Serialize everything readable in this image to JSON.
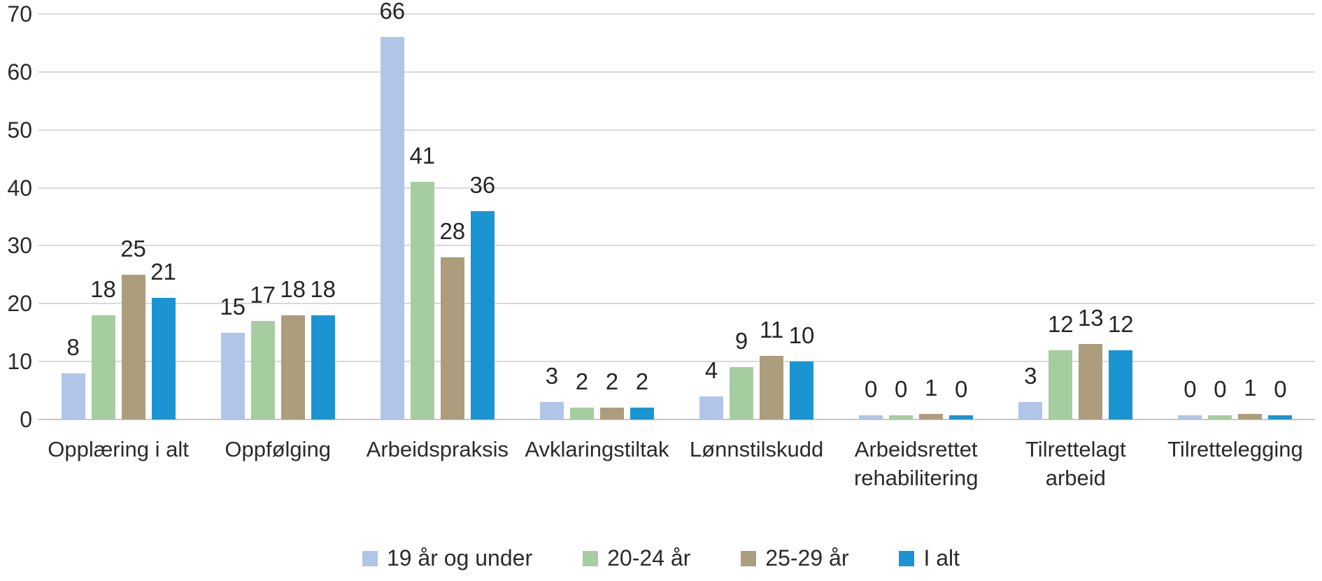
{
  "chart_data": {
    "type": "bar",
    "title": "",
    "xlabel": "",
    "ylabel": "",
    "categories": [
      "Opplæring i alt",
      "Oppfølging",
      "Arbeidspraksis",
      "Avklaringstiltak",
      "Lønnstilskudd",
      "Arbeidsrettet rehabilitering",
      "Tilrettelagt arbeid",
      "Tilrettelegging"
    ],
    "category_label_lines": [
      [
        "Opplæring i alt"
      ],
      [
        "Oppfølging"
      ],
      [
        "Arbeidspraksis"
      ],
      [
        "Avklaringstiltak"
      ],
      [
        "Lønnstilskudd"
      ],
      [
        "Arbeidsrettet",
        "rehabilitering"
      ],
      [
        "Tilrettelagt",
        "arbeid"
      ],
      [
        "Tilrettelegging"
      ]
    ],
    "series": [
      {
        "name": "19 år og under",
        "color": "#b0c5e7",
        "values": [
          8,
          15,
          66,
          3,
          4,
          0,
          3,
          0
        ]
      },
      {
        "name": "20-24 år",
        "color": "#a6cda0",
        "values": [
          18,
          17,
          41,
          2,
          9,
          0,
          12,
          0
        ]
      },
      {
        "name": "25-29 år",
        "color": "#ac9d7d",
        "values": [
          25,
          18,
          28,
          2,
          11,
          1,
          13,
          1
        ]
      },
      {
        "name": "I alt",
        "color": "#1b95d2",
        "values": [
          21,
          18,
          36,
          2,
          10,
          0,
          12,
          0
        ]
      }
    ],
    "y_axis": {
      "min": 0,
      "max": 70,
      "tick_step": 10,
      "tick_labels": [
        "0",
        "10",
        "20",
        "30",
        "40",
        "50",
        "60",
        "70"
      ]
    },
    "ylim": [
      0,
      70
    ],
    "grid": "horizontal",
    "legend_position": "bottom",
    "data_labels_shown": true
  },
  "colors": {
    "background": "#ffffff",
    "grid_line": "#d9d9d9",
    "axis_line": "#c8c8c8",
    "text": "#2b2b2b"
  }
}
